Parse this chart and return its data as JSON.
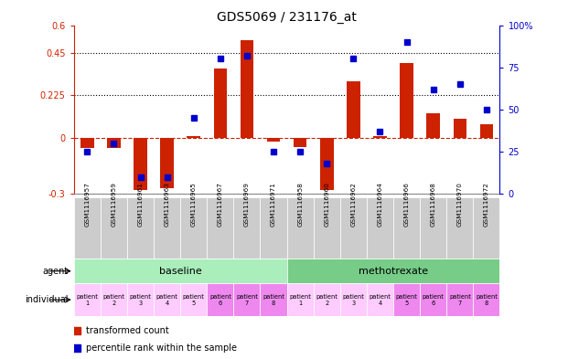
{
  "title": "GDS5069 / 231176_at",
  "samples": [
    "GSM1116957",
    "GSM1116959",
    "GSM1116961",
    "GSM1116963",
    "GSM1116965",
    "GSM1116967",
    "GSM1116969",
    "GSM1116971",
    "GSM1116958",
    "GSM1116960",
    "GSM1116962",
    "GSM1116964",
    "GSM1116966",
    "GSM1116968",
    "GSM1116970",
    "GSM1116972"
  ],
  "bar_values": [
    -0.055,
    -0.055,
    -0.28,
    -0.27,
    0.01,
    0.37,
    0.52,
    -0.02,
    -0.05,
    -0.28,
    0.3,
    0.01,
    0.4,
    0.13,
    0.1,
    0.07
  ],
  "dot_values": [
    25,
    30,
    10,
    10,
    45,
    80,
    82,
    25,
    25,
    18,
    80,
    37,
    90,
    62,
    65,
    50
  ],
  "ylim_left": [
    -0.3,
    0.6
  ],
  "ylim_right": [
    0,
    100
  ],
  "yticks_left": [
    -0.3,
    0.0,
    0.225,
    0.45,
    0.6
  ],
  "ytick_labels_left": [
    "-0.3",
    "0",
    "0.225",
    "0.45",
    "0.6"
  ],
  "yticks_right": [
    0,
    25,
    50,
    75,
    100
  ],
  "ytick_labels_right": [
    "0",
    "25",
    "50",
    "75",
    "100%"
  ],
  "hlines": [
    0.225,
    0.45
  ],
  "bar_color": "#CC2200",
  "dot_color": "#0000CC",
  "dashed_line_color": "#CC2200",
  "agent_baseline_label": "baseline",
  "agent_methotrexate_label": "methotrexate",
  "individual_colors_baseline": [
    "#FFCCFF",
    "#FFCCFF",
    "#FFCCFF",
    "#FFCCFF",
    "#FFCCFF",
    "#EE88EE",
    "#EE88EE",
    "#EE88EE"
  ],
  "individual_colors_methotrexate": [
    "#FFCCFF",
    "#FFCCFF",
    "#FFCCFF",
    "#FFCCFF",
    "#EE88EE",
    "#EE88EE",
    "#EE88EE",
    "#EE88EE"
  ],
  "patient_labels": [
    "patient\n1",
    "patient\n2",
    "patient\n3",
    "patient\n4",
    "patient\n5",
    "patient\n6",
    "patient\n7",
    "patient\n8"
  ],
  "legend_bar_label": "transformed count",
  "legend_dot_label": "percentile rank within the sample",
  "agent_row_label": "agent",
  "individual_row_label": "individual",
  "header_bg": "#CCCCCC",
  "baseline_green": "#AAEEBB",
  "methotrexate_green": "#77CC88"
}
